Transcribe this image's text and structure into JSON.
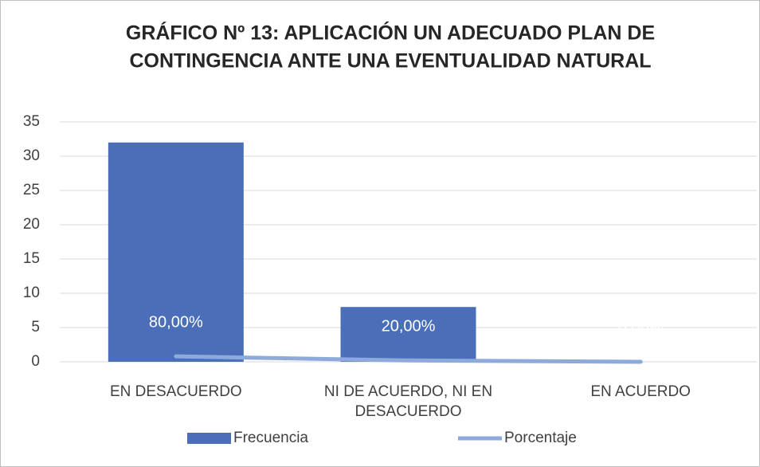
{
  "chart_data": {
    "type": "bar",
    "title": [
      "GRÁFICO Nº 13: APLICACIÓN UN ADECUADO PLAN DE",
      "CONTINGENCIA ANTE UNA EVENTUALIDAD NATURAL"
    ],
    "categories": [
      "EN DESACUERDO",
      "NI DE ACUERDO, NI EN DESACUERDO",
      "EN ACUERDO"
    ],
    "series": [
      {
        "name": "Frecuencia",
        "type": "bar",
        "color": "#4a6fb8",
        "values": [
          32,
          8,
          0
        ]
      },
      {
        "name": "Porcentaje",
        "type": "line",
        "color": "#8eaadb",
        "values": [
          0.8,
          0.2,
          0
        ],
        "value_labels": [
          "80,00%",
          "20,00%",
          "0,00%"
        ]
      }
    ],
    "ylim": [
      0,
      35
    ],
    "yticks": [
      0,
      5,
      10,
      15,
      20,
      25,
      30,
      35
    ],
    "grid": true,
    "legend": "bottom"
  }
}
